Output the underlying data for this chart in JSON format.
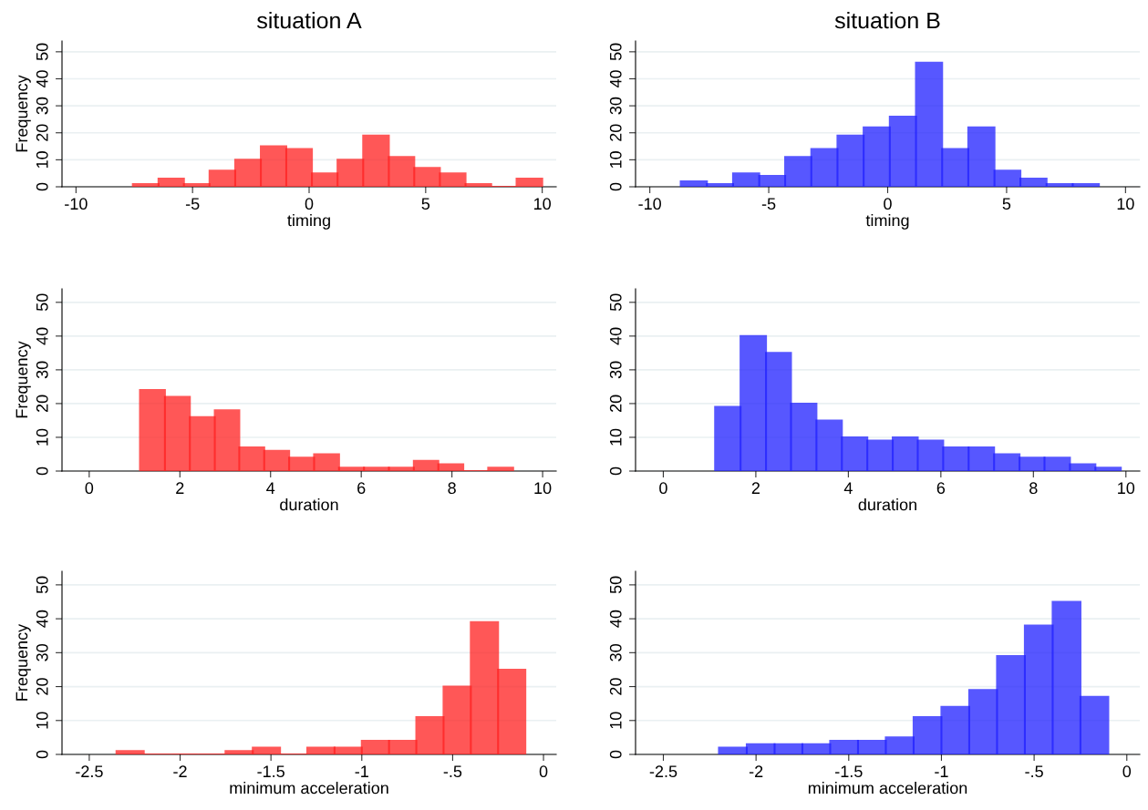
{
  "chart_data": [
    {
      "type": "histogram",
      "title": "situation A",
      "xlabel": "timing",
      "ylabel": "Frequency",
      "color": "#ff2020",
      "grid": "y",
      "bins": [
        -7.56,
        -6.46,
        -5.37,
        -4.27,
        -3.17,
        -2.07,
        -0.98,
        0.12,
        1.22,
        2.32,
        3.42,
        4.51,
        5.61,
        6.71,
        7.81,
        8.9,
        10.0
      ],
      "values": [
        1,
        3,
        1,
        6,
        10,
        15,
        14,
        5,
        10,
        19,
        11,
        7,
        5,
        1,
        0,
        3
      ],
      "xlim": [
        -10.6,
        10.6
      ],
      "xticks": [
        -10,
        -5,
        0,
        5,
        10
      ],
      "ylim": [
        0,
        54
      ],
      "yticks": [
        0,
        10,
        20,
        30,
        40,
        50
      ]
    },
    {
      "type": "histogram",
      "title": "situation B",
      "xlabel": "timing",
      "color": "#2020ff",
      "grid": "y",
      "bins": [
        -8.7,
        -7.6,
        -6.5,
        -5.4,
        -4.31,
        -3.21,
        -2.11,
        -1.01,
        0.09,
        1.19,
        2.29,
        3.39,
        4.49,
        5.58,
        6.68,
        7.78,
        8.88
      ],
      "values": [
        2,
        1,
        5,
        4,
        11,
        14,
        19,
        22,
        26,
        46,
        14,
        22,
        6,
        3,
        1,
        1
      ],
      "xlim": [
        -10.6,
        10.6
      ],
      "xticks": [
        -10,
        -5,
        0,
        5,
        10
      ],
      "ylim": [
        0,
        54
      ],
      "yticks": [
        0,
        10,
        20,
        30,
        40,
        50
      ]
    },
    {
      "type": "histogram",
      "xlabel": "duration",
      "ylabel": "Frequency",
      "color": "#ff2020",
      "grid": "y",
      "bins": [
        1.12,
        1.67,
        2.22,
        2.77,
        3.31,
        3.86,
        4.41,
        4.96,
        5.51,
        6.06,
        6.61,
        7.16,
        7.7,
        8.25,
        8.8,
        9.35
      ],
      "values": [
        24,
        22,
        16,
        18,
        7,
        6,
        4,
        5,
        1,
        1,
        1,
        3,
        2,
        0,
        1
      ],
      "xlim": [
        -0.6,
        10.3
      ],
      "xticks": [
        0,
        2,
        4,
        6,
        8,
        10
      ],
      "ylim": [
        0,
        54
      ],
      "yticks": [
        0,
        10,
        20,
        30,
        40,
        50
      ]
    },
    {
      "type": "histogram",
      "xlabel": "duration",
      "color": "#2020ff",
      "grid": "y",
      "bins": [
        1.12,
        1.67,
        2.22,
        2.76,
        3.31,
        3.86,
        4.41,
        4.96,
        5.5,
        6.05,
        6.6,
        7.15,
        7.7,
        8.24,
        8.79,
        9.34,
        9.89
      ],
      "values": [
        19,
        40,
        35,
        20,
        15,
        10,
        9,
        10,
        9,
        7,
        7,
        5,
        4,
        4,
        2,
        1
      ],
      "xlim": [
        -0.6,
        10.3
      ],
      "xticks": [
        0,
        2,
        4,
        6,
        8,
        10
      ],
      "ylim": [
        0,
        54
      ],
      "yticks": [
        0,
        10,
        20,
        30,
        40,
        50
      ]
    },
    {
      "type": "histogram",
      "xlabel": "minimum acceleration",
      "ylabel": "Frequency",
      "color": "#ff2020",
      "grid": "y",
      "bins": [
        -2.35,
        -2.2,
        -2.05,
        -1.9,
        -1.75,
        -1.6,
        -1.45,
        -1.3,
        -1.15,
        -1.0,
        -0.85,
        -0.7,
        -0.55,
        -0.4,
        -0.25,
        -0.1
      ],
      "values": [
        1,
        0,
        0,
        0,
        1,
        2,
        0,
        2,
        2,
        4,
        4,
        11,
        20,
        39,
        25
      ],
      "xlim": [
        -2.65,
        0.07
      ],
      "xticks": [
        -2.5,
        -2,
        -1.5,
        -1,
        {
          "value": -0.5,
          "label": "-.5"
        },
        0
      ],
      "ylim": [
        0,
        54
      ],
      "yticks": [
        0,
        10,
        20,
        30,
        40,
        50
      ]
    },
    {
      "type": "histogram",
      "xlabel": "minimum acceleration",
      "color": "#2020ff",
      "grid": "y",
      "bins": [
        -2.2,
        -2.05,
        -1.9,
        -1.75,
        -1.6,
        -1.45,
        -1.3,
        -1.15,
        -1.0,
        -0.85,
        -0.7,
        -0.55,
        -0.4,
        -0.25,
        -0.1
      ],
      "values": [
        2,
        3,
        3,
        3,
        4,
        4,
        5,
        11,
        14,
        19,
        29,
        38,
        45,
        17
      ],
      "xlim": [
        -2.65,
        0.07
      ],
      "xticks": [
        -2.5,
        -2,
        -1.5,
        -1,
        {
          "value": -0.5,
          "label": "-.5"
        },
        0
      ],
      "ylim": [
        0,
        54
      ],
      "yticks": [
        0,
        10,
        20,
        30,
        40,
        50
      ]
    }
  ]
}
